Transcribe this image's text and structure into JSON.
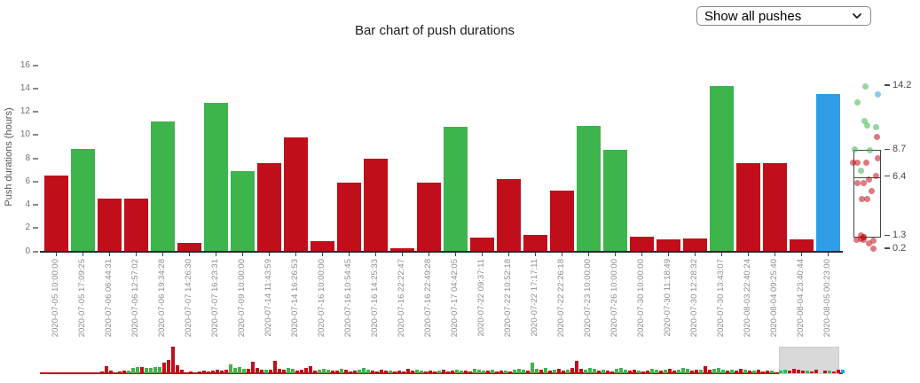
{
  "title": "Bar chart of push durations",
  "controls": {
    "push_filter": {
      "selected": "Show all pushes"
    }
  },
  "chart_data": {
    "type": "bar",
    "title": "Bar chart of push durations",
    "xlabel": "",
    "ylabel": "Push durations (hours)",
    "ylim": [
      0,
      16
    ],
    "yticks": [
      0,
      2,
      4,
      6,
      8,
      10,
      12,
      14,
      16
    ],
    "grid": false,
    "legend": false,
    "categories": [
      "2020-07-05 10:00:00",
      "2020-07-05 17:09:25",
      "2020-07-06 06:44:31",
      "2020-07-06 12:57:02",
      "2020-07-06 19:34:28",
      "2020-07-07 14:26:30",
      "2020-07-07 16:23:31",
      "2020-07-09 10:00:00",
      "2020-07-14 11:43:59",
      "2020-07-14 16:26:53",
      "2020-07-16 10:00:00",
      "2020-07-16 10:54:45",
      "2020-07-16 14:25:33",
      "2020-07-16 22:22:47",
      "2020-07-16 22:49:28",
      "2020-07-17 04:42:05",
      "2020-07-22 09:37:11",
      "2020-07-22 10:52:18",
      "2020-07-22 17:17:11",
      "2020-07-22 22:26:18",
      "2020-07-23 10:00:00",
      "2020-07-26 10:00:00",
      "2020-07-30 10:00:00",
      "2020-07-30 11:18:49",
      "2020-07-30 12:28:32",
      "2020-07-30 13:43:07",
      "2020-08-03 22:40:24",
      "2020-08-04 09:25:40",
      "2020-08-04 23:40:44",
      "2020-08-05 00:23:00"
    ],
    "values": [
      6.5,
      8.8,
      4.5,
      4.5,
      11.2,
      0.7,
      12.8,
      6.9,
      7.6,
      9.8,
      0.9,
      5.9,
      8.0,
      0.25,
      5.9,
      10.7,
      1.2,
      6.2,
      1.4,
      5.2,
      10.8,
      8.7,
      1.25,
      1.0,
      1.1,
      14.2,
      7.6,
      7.6,
      1.0,
      13.5
    ],
    "colors": [
      "red",
      "green",
      "red",
      "red",
      "green",
      "red",
      "green",
      "green",
      "red",
      "red",
      "red",
      "red",
      "red",
      "red",
      "red",
      "green",
      "red",
      "red",
      "red",
      "red",
      "green",
      "green",
      "red",
      "red",
      "red",
      "green",
      "red",
      "red",
      "red",
      "blue"
    ],
    "palette": {
      "red": "#c00f1a",
      "green": "#3eb44d",
      "blue": "#2f9de8"
    },
    "boxplot": {
      "q1": 1.3,
      "median": 6.4,
      "q3": 8.7,
      "max": 14.2,
      "min": 0.2,
      "tick_values": [
        14.2,
        8.7,
        6.4,
        1.3,
        0.2
      ],
      "tick_labels": [
        "14.2",
        "8.7",
        "6.4",
        "1.3",
        "0.2"
      ]
    }
  },
  "overview": {
    "bars": "r2 r8 r3 0 r2 r3 g3 g6 g7 r7 g6 g6 g7 g7 r12 r15 r30 r9 r4 r1 r2 r1 r2 r3 r2 r3 r4 r3 r4 g10 g6 g7 g5 r5 r13 r6 r4 g4 r4 r14 r5 r4 g6 g5 r3 r4 r6 r8 r3 g4 g5 g4 r3 r3 g5 r4 r2 r3 g4 g6 g4 r3 r2 r4 r3 g3 r2 r3 r2 r5 r3 g4 g3 r2 r3 r2 g3 r4 r2 r3 g4 g3 r3 r2 g5 g4 g3 r3 g4 r2 r3 g3 r2 g4 g5 g4 r3 g12 g5 r4 g6 r3 g4 r5 r3 g4 r6 r14 r5 g4 g6 g5 r3 g4 r3 r2 g5 g6 g4 r3 r4 g3 r2 r3 g5 g4 r3 g4 r5 r3 g4 g6 g5 r3 r4 g4 r8 r4 g5 g6 g4 r3 g4 r3 r5 g4 r3 g3 r4 r2 r3 g3 0 g3 g4 r3 r5 r4 r3 g3 r2 r4 0 r3 g3 r2 r4 b4"
  }
}
